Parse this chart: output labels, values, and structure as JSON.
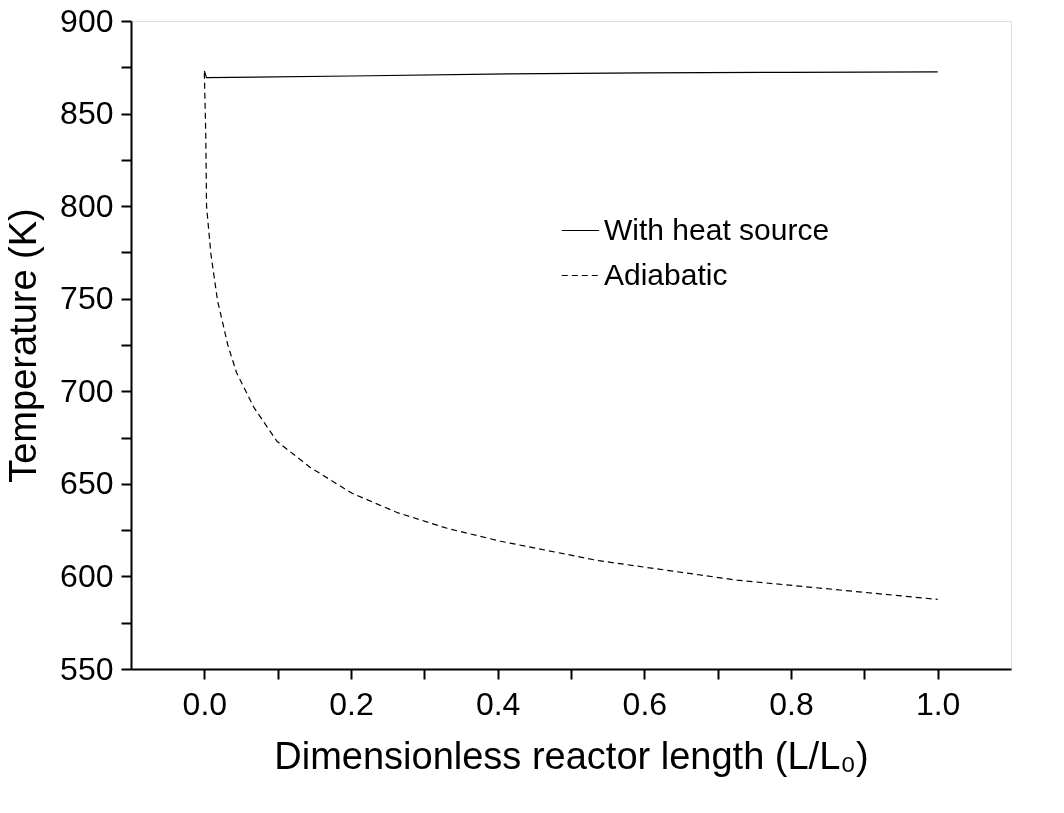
{
  "chart_data": {
    "type": "line",
    "xlabel": "Dimensionless reactor length (L/L₀)",
    "ylabel": "Temperature (K)",
    "xlim": [
      -0.1,
      1.1
    ],
    "xticks": [
      {
        "value": 0.0,
        "label": "0.0"
      },
      {
        "value": 0.1,
        "label": null
      },
      {
        "value": 0.2,
        "label": "0.2"
      },
      {
        "value": 0.3,
        "label": null
      },
      {
        "value": 0.4,
        "label": "0.4"
      },
      {
        "value": 0.5,
        "label": null
      },
      {
        "value": 0.6,
        "label": "0.6"
      },
      {
        "value": 0.7,
        "label": null
      },
      {
        "value": 0.8,
        "label": "0.8"
      },
      {
        "value": 0.9,
        "label": null
      },
      {
        "value": 1.0,
        "label": "1.0"
      }
    ],
    "ylim": [
      550,
      900
    ],
    "yticks": [
      550,
      {
        "value": 575,
        "label": null
      },
      600,
      {
        "value": 625,
        "label": null
      },
      650,
      {
        "value": 675,
        "label": null
      },
      700,
      {
        "value": 725,
        "label": null
      },
      750,
      {
        "value": 775,
        "label": null
      },
      800,
      {
        "value": 825,
        "label": null
      },
      850,
      {
        "value": 875,
        "label": null
      },
      900
    ],
    "grid": false,
    "legend": "right",
    "marker": "none",
    "series": [
      {
        "name": "With heat source",
        "color": "#000000",
        "line_style": "solid",
        "x": [
          0,
          0.003,
          0.2,
          0.415,
          0.6,
          0.8,
          1.0
        ],
        "values": [
          873,
          869.4,
          870.3,
          871.4,
          872,
          872.3,
          872.5
        ]
      },
      {
        "name": "Adiabatic",
        "color": "#000000",
        "line_style": "dashed",
        "x": [
          0,
          0.002,
          0.003,
          0.009,
          0.018,
          0.032,
          0.044,
          0.068,
          0.099,
          0.144,
          0.201,
          0.263,
          0.331,
          0.404,
          0.538,
          0.726,
          1.0
        ],
        "values": [
          872,
          838,
          800,
          774,
          749,
          725,
          710,
          691,
          673,
          659,
          645,
          634.5,
          626,
          619,
          608.5,
          598,
          587.6
        ]
      }
    ]
  }
}
